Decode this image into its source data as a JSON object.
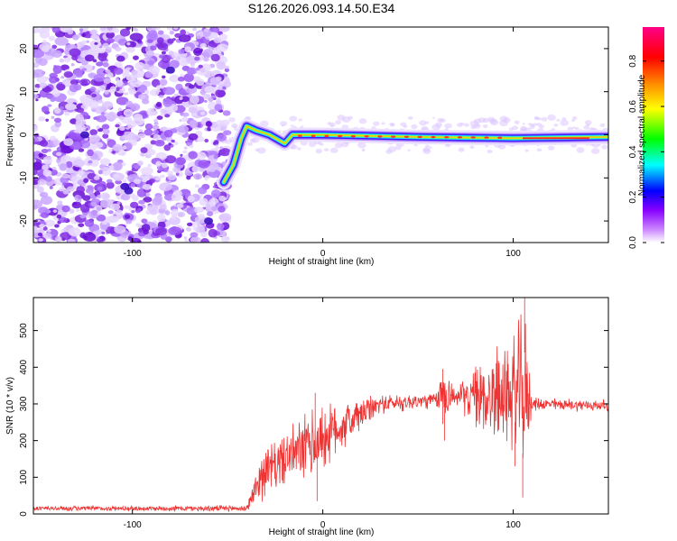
{
  "chart_data": [
    {
      "type": "heatmap",
      "title": "S126.2026.093.14.50.E34",
      "xlabel": "Height of straight line (km)",
      "ylabel": "Frequency (Hz)",
      "xlim": [
        -152,
        150
      ],
      "ylim": [
        -25,
        25
      ],
      "xticks": [
        -100,
        0,
        100
      ],
      "yticks": [
        -20,
        -10,
        0,
        10,
        20
      ],
      "colorbar": {
        "label": "Normalized spectral amplitude",
        "range": [
          0.0,
          0.95
        ],
        "ticks": [
          0.0,
          0.2,
          0.4,
          0.6,
          0.8
        ],
        "colors": [
          "#ffffff",
          "#cc88ff",
          "#8800ff",
          "#0000ff",
          "#00ffff",
          "#00ff00",
          "#ffff00",
          "#ff8800",
          "#ff0000",
          "#ff0088"
        ]
      },
      "ridge": [
        {
          "x": -52,
          "y": -11
        },
        {
          "x": -47,
          "y": -7
        },
        {
          "x": -43,
          "y": -1
        },
        {
          "x": -40,
          "y": 2
        },
        {
          "x": -35,
          "y": 1
        },
        {
          "x": -28,
          "y": 0
        },
        {
          "x": -20,
          "y": -2
        },
        {
          "x": -16,
          "y": 0
        },
        {
          "x": -10,
          "y": 0
        },
        {
          "x": 0,
          "y": 0
        },
        {
          "x": 50,
          "y": -0.5
        },
        {
          "x": 100,
          "y": -0.8
        },
        {
          "x": 150,
          "y": -0.5
        }
      ]
    },
    {
      "type": "line",
      "xlabel": "Height of straight line (km)",
      "ylabel": "SNR (10 * v/v)",
      "xlim": [
        -152,
        150
      ],
      "ylim": [
        0,
        590
      ],
      "xticks": [
        -100,
        0,
        100
      ],
      "yticks": [
        0,
        100,
        200,
        300,
        400,
        500
      ],
      "color": "#ee3333",
      "envelope": [
        {
          "x": -152,
          "mean": 15,
          "amp": 8
        },
        {
          "x": -100,
          "mean": 15,
          "amp": 8
        },
        {
          "x": -40,
          "mean": 15,
          "amp": 10
        },
        {
          "x": -36,
          "mean": 60,
          "amp": 40
        },
        {
          "x": -32,
          "mean": 110,
          "amp": 80
        },
        {
          "x": -20,
          "mean": 150,
          "amp": 80
        },
        {
          "x": -5,
          "mean": 190,
          "amp": 120
        },
        {
          "x": 10,
          "mean": 240,
          "amp": 80
        },
        {
          "x": 30,
          "mean": 300,
          "amp": 30
        },
        {
          "x": 60,
          "mean": 310,
          "amp": 25
        },
        {
          "x": 63,
          "mean": 330,
          "amp": 100
        },
        {
          "x": 70,
          "mean": 320,
          "amp": 25
        },
        {
          "x": 85,
          "mean": 320,
          "amp": 130
        },
        {
          "x": 100,
          "mean": 330,
          "amp": 180
        },
        {
          "x": 106,
          "mean": 330,
          "amp": 260
        },
        {
          "x": 110,
          "mean": 300,
          "amp": 20
        },
        {
          "x": 150,
          "mean": 295,
          "amp": 18
        }
      ]
    }
  ]
}
